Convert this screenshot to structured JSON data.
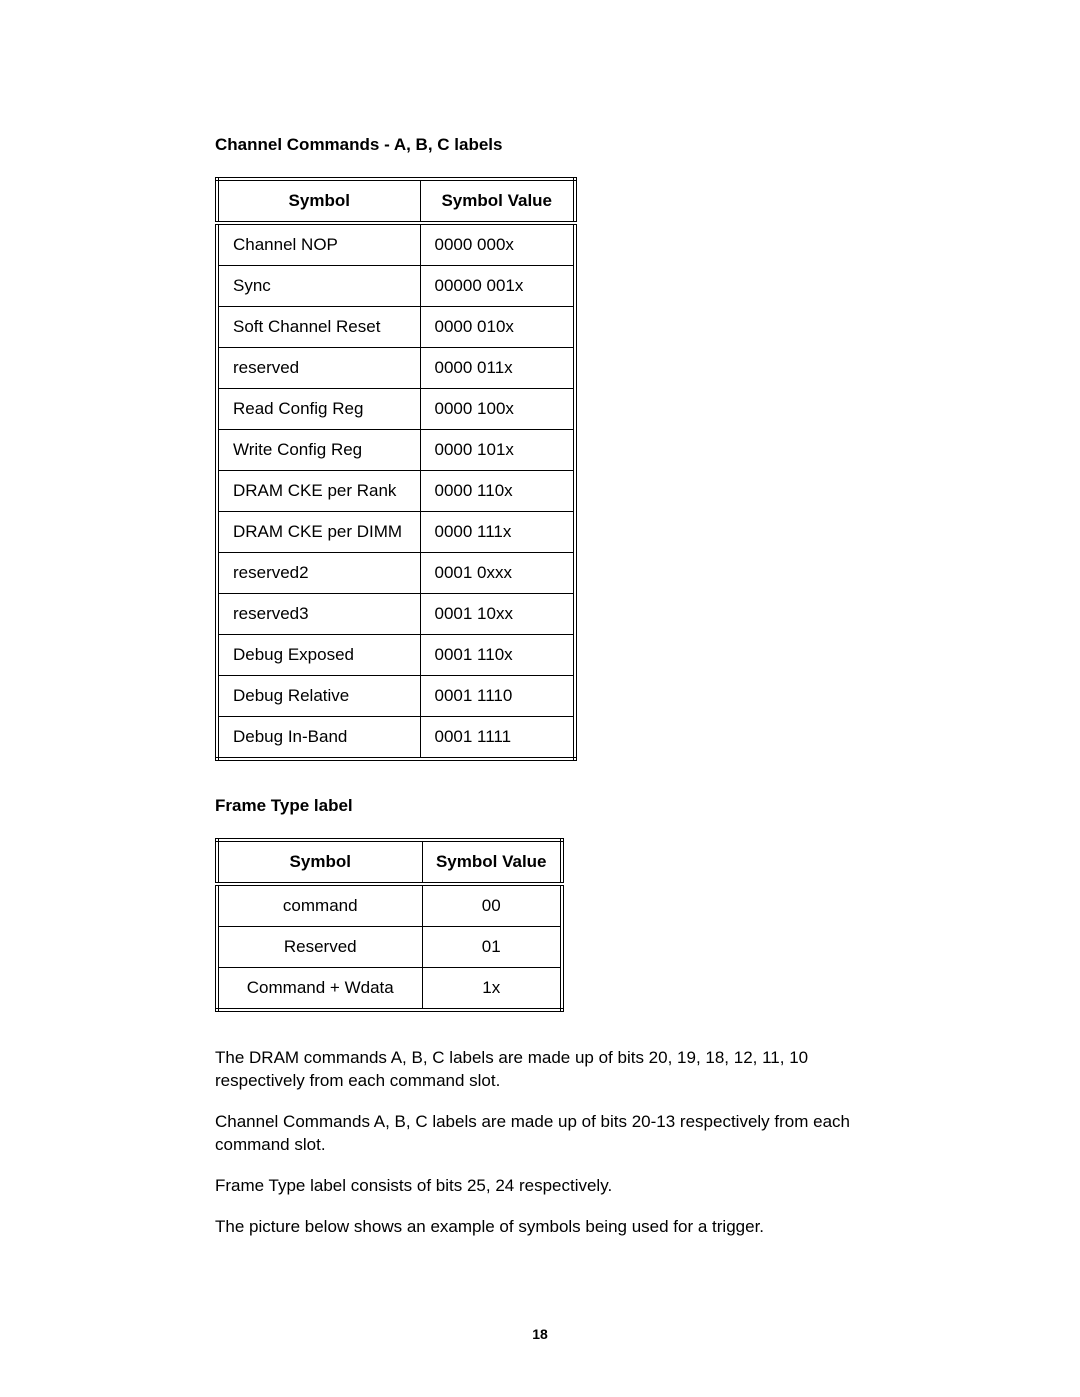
{
  "headings": {
    "h1": "Channel Commands - A, B, C labels",
    "h2": "Frame Type label"
  },
  "table1": {
    "header_sym": "Symbol",
    "header_val": "Symbol Value",
    "col_widths": {
      "sym": 203,
      "val": 155
    },
    "rows": [
      {
        "sym": "Channel NOP",
        "val": "0000 000x"
      },
      {
        "sym": "Sync",
        "val": "00000 001x"
      },
      {
        "sym": "Soft Channel Reset",
        "val": "0000 010x"
      },
      {
        "sym": "reserved",
        "val": "0000 011x"
      },
      {
        "sym": "Read Config Reg",
        "val": "0000 100x"
      },
      {
        "sym": "Write Config Reg",
        "val": "0000 101x"
      },
      {
        "sym": "DRAM CKE per Rank",
        "val": "0000 110x"
      },
      {
        "sym": "DRAM CKE per DIMM",
        "val": "0000 111x"
      },
      {
        "sym": "reserved2",
        "val": "0001 0xxx"
      },
      {
        "sym": "reserved3",
        "val": "0001 10xx"
      },
      {
        "sym": "Debug Exposed",
        "val": "0001 110x"
      },
      {
        "sym": "Debug Relative",
        "val": "0001 1110"
      },
      {
        "sym": "Debug In-Band",
        "val": "0001 1111"
      }
    ]
  },
  "table2": {
    "header_sym": "Symbol",
    "header_val": "Symbol Value",
    "col_widths": {
      "sym": 205,
      "val": 140
    },
    "rows": [
      {
        "sym": "command",
        "val": "00"
      },
      {
        "sym": "Reserved",
        "val": "01"
      },
      {
        "sym": "Command + Wdata",
        "val": "1x"
      }
    ]
  },
  "paragraphs": {
    "p1": "The DRAM commands A, B, C labels are made up of bits 20, 19, 18, 12, 11, 10 respectively from each command slot.",
    "p2": "Channel Commands A, B, C labels are made up of bits 20-13 respectively from each command slot.",
    "p3": "Frame Type label consists of bits 25, 24 respectively.",
    "p4": "The picture below shows an example of symbols being used for a trigger."
  },
  "page_number": "18",
  "style": {
    "font_family": "Arial, Helvetica, sans-serif",
    "text_color": "#000000",
    "background_color": "#ffffff",
    "heading_fontsize": 17,
    "body_fontsize": 17,
    "pagenum_fontsize": 14,
    "table_border": "4px double #000000",
    "cell_border": "1px solid #000000"
  }
}
